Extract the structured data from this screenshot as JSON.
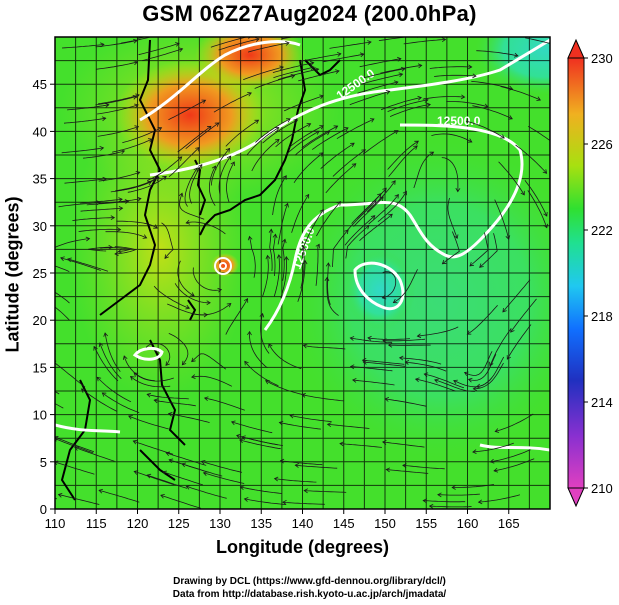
{
  "title": "GSM 06Z27Aug2024 (200.0hPa)",
  "xlabel": "Longitude (degrees)",
  "ylabel": "Latitude  (degrees)",
  "credits": [
    "Drawing by DCL (https://www.gfd-dennou.org/library/dcl/)",
    "Data from http://database.rish.kyoto-u.ac.jp/arch/jmadata/"
  ],
  "chart_data": {
    "type": "heatmap",
    "x_ticks": [
      110,
      115,
      120,
      125,
      130,
      135,
      140,
      145,
      150,
      155,
      160,
      165
    ],
    "y_ticks": [
      0,
      5,
      10,
      15,
      20,
      25,
      30,
      35,
      40,
      45
    ],
    "xlim": [
      110,
      170
    ],
    "ylim": [
      0,
      50
    ],
    "colorbar": {
      "ticks": [
        230,
        226,
        222,
        218,
        214,
        210
      ],
      "range": [
        210,
        230
      ],
      "colors_low_to_high": [
        "#e040c0",
        "#7a20d0",
        "#2030c0",
        "#1080ff",
        "#20d8e0",
        "#20e070",
        "#40e020",
        "#c0e010",
        "#f0a020",
        "#f03020"
      ]
    },
    "contour_labels": [
      "12500.0",
      "12500.0",
      "12500.0"
    ],
    "grid": "on",
    "overlay": "streamlines"
  }
}
